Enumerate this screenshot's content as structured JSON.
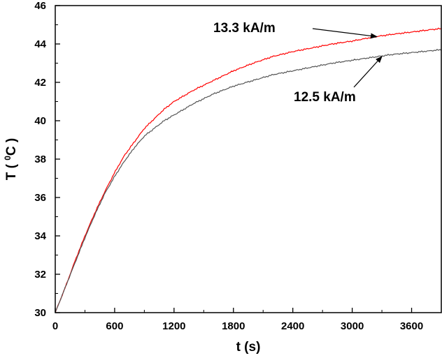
{
  "chart_data": {
    "type": "line",
    "xlabel": "t (s)",
    "ylabel": {
      "prefix": "T ( ",
      "sup": "0",
      "suffix": "C )"
    },
    "xlim": [
      0,
      3900
    ],
    "ylim": [
      30,
      46
    ],
    "xticks": [
      0,
      600,
      1200,
      1800,
      2400,
      3000,
      3600
    ],
    "yticks": [
      30,
      32,
      34,
      36,
      38,
      40,
      42,
      44,
      46
    ],
    "grid": false,
    "series": [
      {
        "name": "13.3 kA/m",
        "color": "#ff0000",
        "x": [
          0,
          100,
          200,
          300,
          400,
          500,
          600,
          700,
          800,
          900,
          1000,
          1100,
          1200,
          1400,
          1600,
          1800,
          2000,
          2200,
          2400,
          2600,
          2800,
          3000,
          3200,
          3400,
          3600,
          3800,
          3900
        ],
        "y": [
          30.0,
          31.3,
          32.7,
          34.0,
          35.2,
          36.3,
          37.3,
          38.2,
          38.9,
          39.6,
          40.1,
          40.6,
          41.0,
          41.6,
          42.1,
          42.6,
          43.0,
          43.35,
          43.6,
          43.8,
          44.0,
          44.15,
          44.35,
          44.5,
          44.62,
          44.75,
          44.8
        ]
      },
      {
        "name": "12.5 kA/m",
        "color": "#555555",
        "x": [
          0,
          100,
          200,
          300,
          400,
          500,
          600,
          700,
          800,
          900,
          1000,
          1100,
          1200,
          1400,
          1600,
          1800,
          2000,
          2200,
          2400,
          2600,
          2800,
          3000,
          3200,
          3400,
          3600,
          3800,
          3900
        ],
        "y": [
          30.0,
          31.3,
          32.6,
          33.9,
          35.1,
          36.2,
          37.1,
          37.9,
          38.6,
          39.2,
          39.6,
          40.0,
          40.3,
          40.9,
          41.4,
          41.8,
          42.1,
          42.4,
          42.6,
          42.8,
          43.0,
          43.15,
          43.3,
          43.45,
          43.55,
          43.65,
          43.7
        ]
      }
    ],
    "annotations": [
      {
        "text": "13.3 kA/m",
        "series": 0,
        "arrow_to": [
          3250,
          44.38
        ]
      },
      {
        "text": "12.5 kA/m",
        "series": 1,
        "arrow_to": [
          3300,
          43.35
        ]
      }
    ]
  }
}
